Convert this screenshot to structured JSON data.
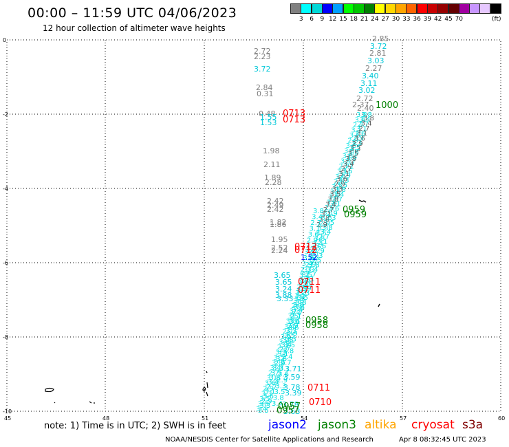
{
  "header": {
    "title": "00:00 – 11:59 UTC 04/06/2023",
    "subtitle": "12 hour collection of altimeter wave heights"
  },
  "legend": {
    "colors": [
      "#808080",
      "#00ffff",
      "#00d7d7",
      "#0000ff",
      "#00a0ff",
      "#00ff00",
      "#00c800",
      "#008000",
      "#ffff00",
      "#ffd700",
      "#ffa500",
      "#ff6400",
      "#ff0000",
      "#c80000",
      "#960000",
      "#640000",
      "#a000a0",
      "#c896ff",
      "#e6c8ff",
      "#000000"
    ],
    "labels": [
      "3",
      "6",
      "9",
      "12",
      "15",
      "18",
      "21",
      "24",
      "27",
      "30",
      "33",
      "36",
      "39",
      "42",
      "45",
      "70"
    ],
    "unit": "(ft)"
  },
  "axes": {
    "x_ticks": [
      "45",
      "48",
      "51",
      "54",
      "57",
      "60"
    ],
    "y_ticks": [
      "0",
      "-2",
      "-4",
      "-6",
      "-8",
      "-10"
    ]
  },
  "readings": {
    "gray_top": [
      "2.85",
      "2.81",
      "2.27",
      "2.72",
      "2.37",
      "2.40"
    ],
    "cyan_top": [
      "3.72",
      "3.03",
      "3.40",
      "3.11",
      "3.02"
    ],
    "gray_left": [
      "2.72",
      "2.23",
      "2.84",
      "0.31",
      "0.48",
      "1.98",
      "2.11",
      "1.89",
      "2.28",
      "2.42",
      "2.49",
      "2.42",
      "1.82",
      "1.86",
      "1.95",
      "2.52",
      "2.24"
    ],
    "cyan_left": [
      "3.72",
      "1.55",
      "1.53",
      "3.65",
      "3.65",
      "3.24",
      "3.88",
      "3.33",
      "3.71",
      "3.59",
      "3.78",
      "3.39",
      "3.78",
      "3.63"
    ],
    "green_times": [
      "1000",
      "0959",
      "0959",
      "0958",
      "0958",
      "0957",
      "0957"
    ],
    "red_times": [
      "0713",
      "0713",
      "0712",
      "0712",
      "0711",
      "0711",
      "0711",
      "0710"
    ],
    "blue_label": "1.52"
  },
  "footer": {
    "note": "note:  1) Time is in UTC;  2) SWH is in feet",
    "satellites": [
      {
        "name": "jason2",
        "color": "#0000ff"
      },
      {
        "name": "jason3",
        "color": "#008000"
      },
      {
        "name": "altika",
        "color": "#ffa500"
      },
      {
        "name": "cryosat",
        "color": "#ff0000"
      },
      {
        "name": "s3a",
        "color": "#800000"
      }
    ],
    "credit": "NOAA/NESDIS Center for Satellite Applications and Research",
    "timestamp": "Apr  8 08:32:45 UTC 2023"
  }
}
